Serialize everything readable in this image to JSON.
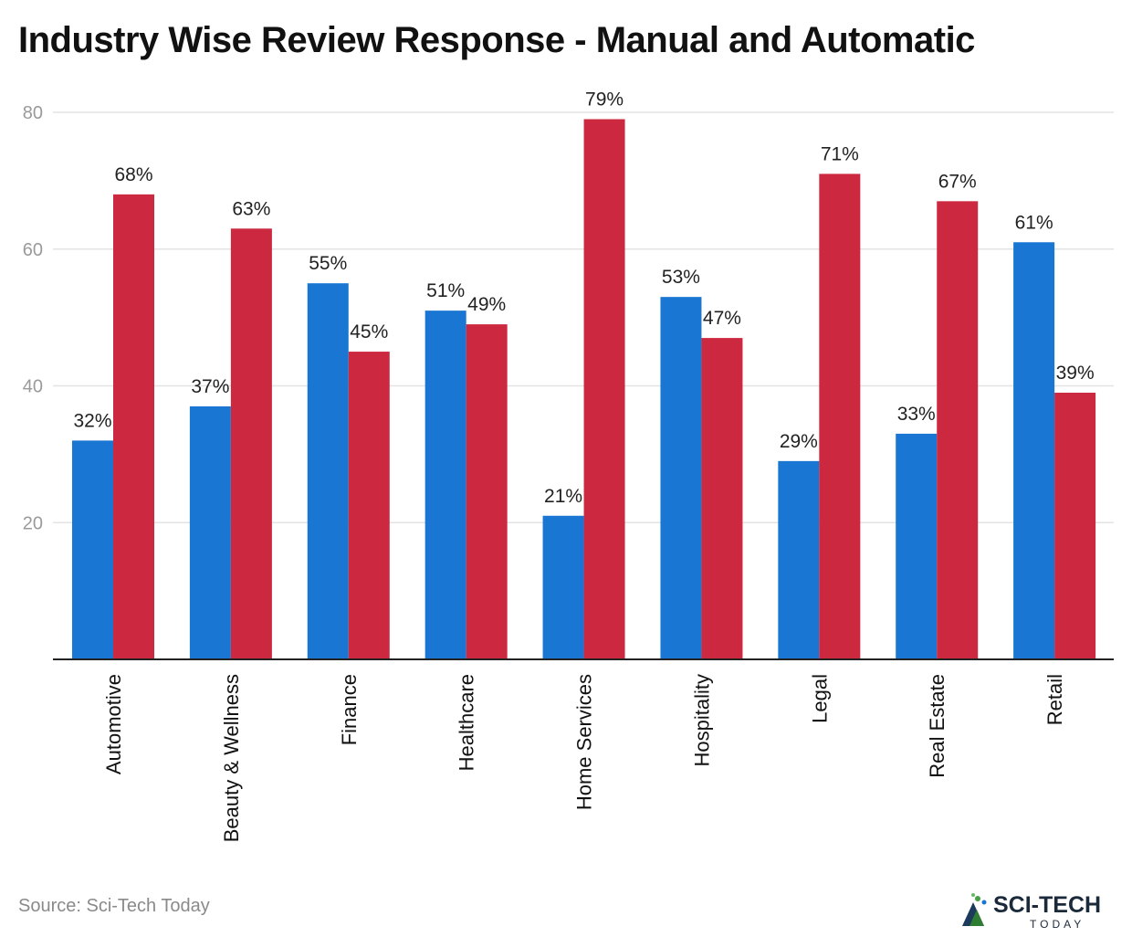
{
  "chart_data": {
    "type": "bar",
    "title": "Industry Wise Review Response - Manual and Automatic",
    "categories": [
      "Automotive",
      "Beauty & Wellness",
      "Finance",
      "Healthcare",
      "Home Services",
      "Hospitality",
      "Legal",
      "Real Estate",
      "Retail"
    ],
    "series": [
      {
        "name": "Manual",
        "color": "#1976d2",
        "values": [
          32,
          37,
          55,
          51,
          21,
          53,
          29,
          33,
          61
        ],
        "labels": [
          "32%",
          "37%",
          "55%",
          "51%",
          "21%",
          "53%",
          "29%",
          "33%",
          "61%"
        ]
      },
      {
        "name": "Automatic",
        "color": "#cc2941",
        "values": [
          68,
          63,
          45,
          49,
          79,
          47,
          71,
          67,
          39
        ],
        "labels": [
          "68%",
          "63%",
          "45%",
          "49%",
          "79%",
          "47%",
          "71%",
          "67%",
          "39%"
        ]
      }
    ],
    "yticks": [
      20,
      40,
      60,
      80
    ],
    "ylim": [
      0,
      80
    ],
    "xlabel": "",
    "ylabel": "",
    "grid": true
  },
  "source": "Source: Sci-Tech Today",
  "logo": {
    "name": "SCI-TECH",
    "tagline": "TODAY"
  }
}
